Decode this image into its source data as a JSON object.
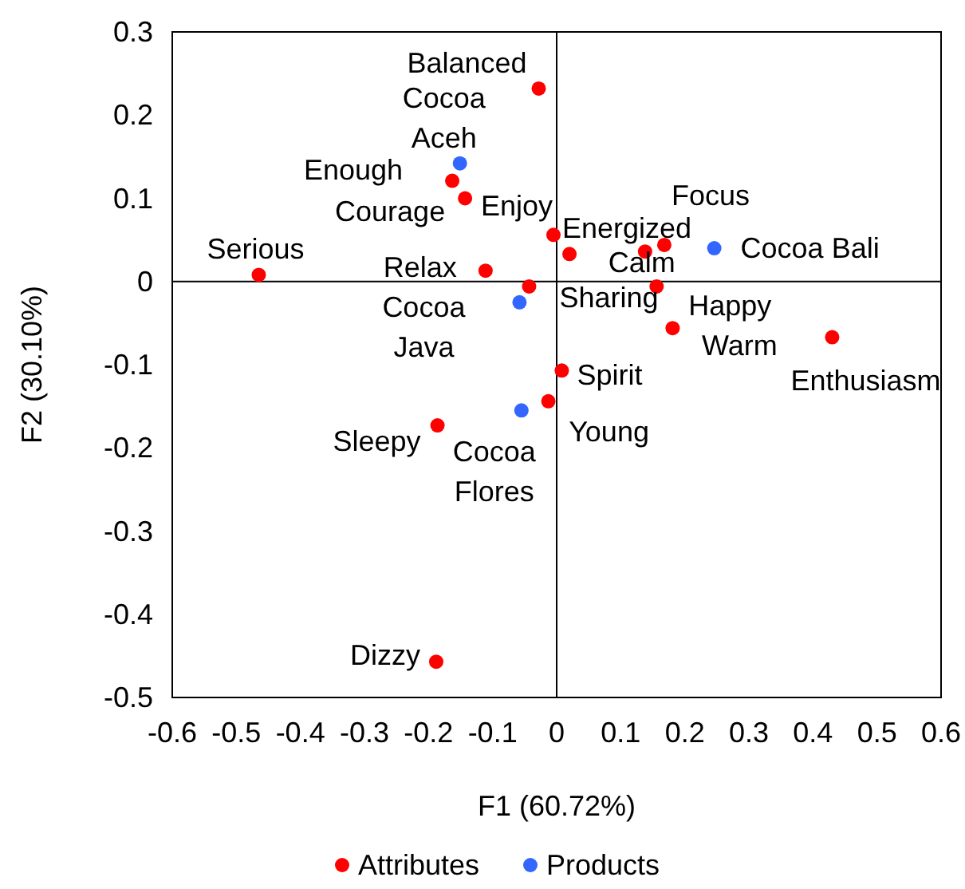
{
  "chart_data": {
    "type": "scatter",
    "xlabel": "F1 (60.72%)",
    "ylabel": "F2 (30.10%)",
    "xlim": [
      -0.6,
      0.6
    ],
    "xticks": [
      -0.6,
      -0.5,
      -0.4,
      -0.3,
      -0.2,
      -0.1,
      0,
      0.1,
      0.2,
      0.3,
      0.4,
      0.5,
      0.6
    ],
    "ylim": [
      -0.5,
      0.3
    ],
    "yticks": [
      -0.5,
      -0.4,
      -0.3,
      -0.2,
      -0.1,
      0,
      0.1,
      0.2,
      0.3
    ],
    "legend": "bottom",
    "marker": "circle",
    "series": [
      {
        "name": "Attributes",
        "color": "#ff0000",
        "x": [
          -0.028,
          -0.163,
          -0.143,
          -0.465,
          -0.111,
          -0.005,
          0.02,
          0.168,
          0.138,
          -0.043,
          0.156,
          0.181,
          0.43,
          0.008,
          -0.013,
          -0.186,
          -0.188
        ],
        "values": [
          0.232,
          0.121,
          0.1,
          0.008,
          0.013,
          0.056,
          0.033,
          0.044,
          0.036,
          -0.006,
          -0.006,
          -0.056,
          -0.067,
          -0.107,
          -0.144,
          -0.173,
          -0.457
        ]
      },
      {
        "name": "Products",
        "color": "#3366ff",
        "x": [
          -0.151,
          0.246,
          -0.058,
          -0.055
        ],
        "values": [
          0.142,
          0.04,
          -0.025,
          -0.155
        ]
      }
    ],
    "annotations": [
      {
        "text": "Balanced",
        "x": -0.028,
        "y": 0.232
      },
      {
        "text": "Cocoa Aceh",
        "x": -0.151,
        "y": 0.142
      },
      {
        "text": "Enough",
        "x": -0.163,
        "y": 0.121
      },
      {
        "text": "Courage",
        "x": -0.143,
        "y": 0.1
      },
      {
        "text": "Serious",
        "x": -0.465,
        "y": 0.008
      },
      {
        "text": "Relax",
        "x": -0.111,
        "y": 0.013
      },
      {
        "text": "Enjoy",
        "x": -0.005,
        "y": 0.056
      },
      {
        "text": "Energized",
        "x": 0.02,
        "y": 0.033
      },
      {
        "text": "Focus",
        "x": 0.168,
        "y": 0.044
      },
      {
        "text": "Calm",
        "x": 0.138,
        "y": 0.036
      },
      {
        "text": "Cocoa Bali",
        "x": 0.246,
        "y": 0.04
      },
      {
        "text": "Sharing",
        "x": -0.043,
        "y": -0.006
      },
      {
        "text": "Cocoa Java",
        "x": -0.058,
        "y": -0.025
      },
      {
        "text": "Happy",
        "x": 0.156,
        "y": -0.006
      },
      {
        "text": "Warm",
        "x": 0.181,
        "y": -0.056
      },
      {
        "text": "Enthusiasm",
        "x": 0.43,
        "y": -0.067
      },
      {
        "text": "Spirit",
        "x": 0.008,
        "y": -0.107
      },
      {
        "text": "Young",
        "x": -0.013,
        "y": -0.144
      },
      {
        "text": "Cocoa Flores",
        "x": -0.055,
        "y": -0.155
      },
      {
        "text": "Sleepy",
        "x": -0.186,
        "y": -0.173
      },
      {
        "text": "Dizzy",
        "x": -0.188,
        "y": -0.457
      }
    ]
  }
}
